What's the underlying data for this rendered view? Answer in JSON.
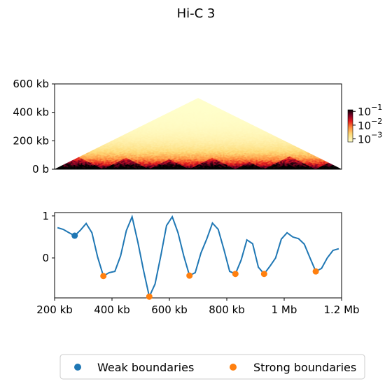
{
  "figure": {
    "title": "Hi-C 3"
  },
  "chart_data": [
    {
      "type": "heatmap",
      "name": "hic-triangle",
      "title": "",
      "y_axis": {
        "ticks": [
          "600 kb",
          "400 kb",
          "200 kb",
          "0 b"
        ],
        "tick_values_kb": [
          600,
          400,
          200,
          0
        ],
        "range_kb": [
          0,
          600
        ]
      },
      "x_range_kb": [
        200,
        1200
      ],
      "colorbar": {
        "scale": "log",
        "ticks": [
          {
            "base": "10",
            "exp": "−1",
            "value": 0.1
          },
          {
            "base": "10",
            "exp": "−2",
            "value": 0.01
          },
          {
            "base": "10",
            "exp": "−3",
            "value": 0.001
          }
        ],
        "colormap": "YlOrRd-dark (afmhot-like)"
      },
      "tad_boundaries_kb": [
        200,
        370,
        530,
        670,
        830,
        930,
        1110,
        1200
      ]
    },
    {
      "type": "line",
      "name": "insulation-score",
      "x_axis": {
        "ticks": [
          "200 kb",
          "400 kb",
          "600 kb",
          "800 kb",
          "1 Mb",
          "1.2 Mb"
        ],
        "tick_values_kb": [
          200,
          400,
          600,
          800,
          1000,
          1200
        ],
        "range_kb": [
          200,
          1200
        ]
      },
      "y_axis": {
        "ticks": [
          "1",
          "0"
        ],
        "tick_values": [
          1,
          0
        ],
        "range": [
          -0.95,
          1.08
        ]
      },
      "series": [
        {
          "color": "#1f77b4",
          "x": [
            210,
            230,
            250,
            270,
            290,
            310,
            330,
            350,
            370,
            390,
            410,
            430,
            450,
            470,
            490,
            510,
            530,
            550,
            570,
            590,
            610,
            630,
            650,
            670,
            690,
            710,
            730,
            750,
            770,
            790,
            810,
            830,
            850,
            870,
            890,
            910,
            930,
            950,
            970,
            990,
            1010,
            1030,
            1050,
            1070,
            1090,
            1110,
            1130,
            1150,
            1170,
            1190
          ],
          "y": [
            0.72,
            0.68,
            0.6,
            0.53,
            0.66,
            0.82,
            0.6,
            0.02,
            -0.43,
            -0.35,
            -0.32,
            0.05,
            0.65,
            0.98,
            0.38,
            -0.3,
            -0.92,
            -0.62,
            0.05,
            0.77,
            0.98,
            0.6,
            0.05,
            -0.42,
            -0.35,
            0.12,
            0.45,
            0.83,
            0.68,
            0.2,
            -0.32,
            -0.38,
            -0.05,
            0.43,
            0.34,
            -0.22,
            -0.38,
            -0.2,
            0.0,
            0.45,
            0.6,
            0.5,
            0.46,
            0.33,
            0.0,
            -0.32,
            -0.25,
            0.0,
            0.18,
            0.22
          ]
        }
      ],
      "scatter": [
        {
          "label": "Weak boundaries",
          "color": "#1f77b4",
          "points": [
            [
              270,
              0.53
            ]
          ]
        },
        {
          "label": "Strong boundaries",
          "color": "#ff7f0e",
          "points": [
            [
              370,
              -0.43
            ],
            [
              530,
              -0.92
            ],
            [
              670,
              -0.42
            ],
            [
              830,
              -0.38
            ],
            [
              930,
              -0.38
            ],
            [
              1110,
              -0.32
            ]
          ]
        }
      ]
    }
  ],
  "legend": {
    "placement": "bottom-center",
    "items": [
      "Weak boundaries",
      "Strong boundaries"
    ]
  }
}
